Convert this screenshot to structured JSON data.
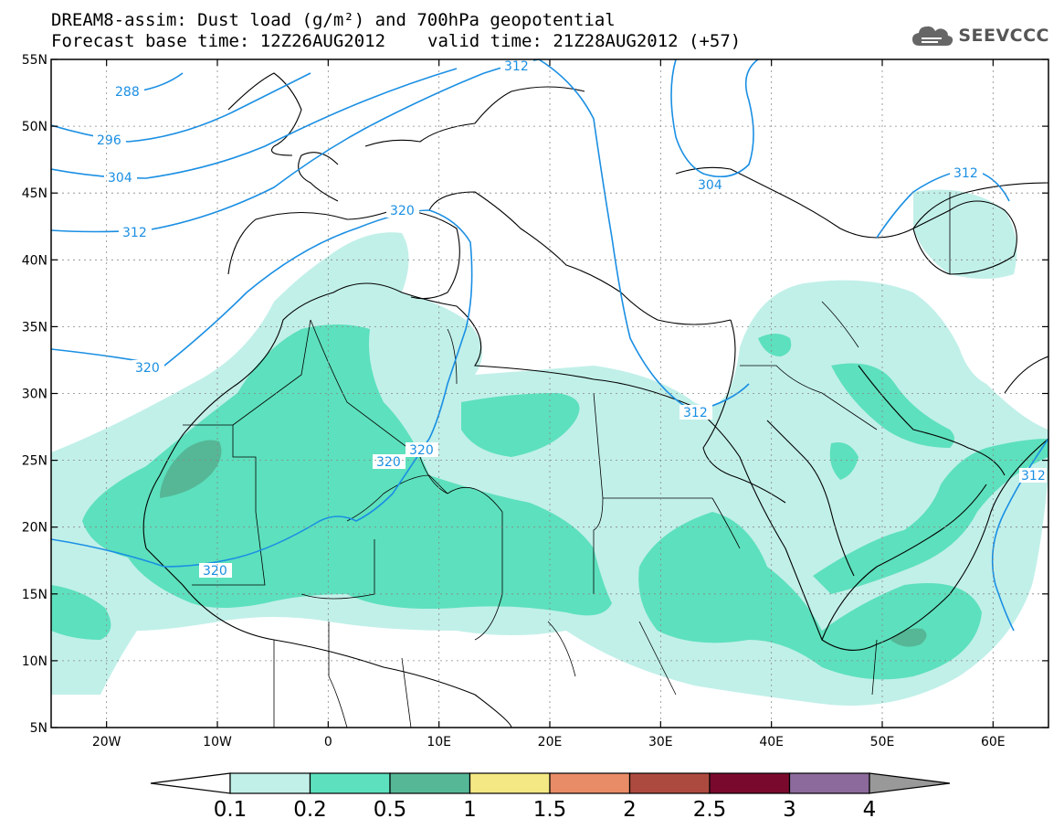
{
  "title": {
    "line1": "DREAM8-assim: Dust load (g/m²) and 700hPa geopotential",
    "line2_left": "Forecast base time: 12Z26AUG2012",
    "line2_right": "valid time: 21Z28AUG2012 (+57)"
  },
  "logo": {
    "text": "SEEVCCC",
    "icon": "cloud-icon"
  },
  "map": {
    "lat_labels": [
      "55N",
      "50N",
      "45N",
      "40N",
      "35N",
      "30N",
      "25N",
      "20N",
      "15N",
      "10N",
      "5N"
    ],
    "lon_labels": [
      "20W",
      "10W",
      "0",
      "10E",
      "20E",
      "30E",
      "40E",
      "50E",
      "60E"
    ],
    "lat_values": [
      55,
      50,
      45,
      40,
      35,
      30,
      25,
      20,
      15,
      10,
      5
    ],
    "lon_values": [
      -20,
      -10,
      0,
      10,
      20,
      30,
      40,
      50,
      60
    ],
    "extent": {
      "lon_min": -25,
      "lon_max": 65,
      "lat_min": 5,
      "lat_max": 55
    },
    "contour_color": "#1a8fe3",
    "contour_labels": [
      "288",
      "296",
      "304",
      "312",
      "320",
      "320",
      "320",
      "320",
      "320",
      "312",
      "312",
      "304",
      "312",
      "312"
    ]
  },
  "colorbar": {
    "labels": [
      "0.1",
      "0.2",
      "0.5",
      "1",
      "1.5",
      "2",
      "2.5",
      "3",
      "4"
    ],
    "colors": [
      "#c1f0e9",
      "#5de0bd",
      "#55b796",
      "#f4e884",
      "#e88c67",
      "#ad4a3f",
      "#7a0a2d",
      "#8c6a9c",
      "#999999"
    ]
  }
}
